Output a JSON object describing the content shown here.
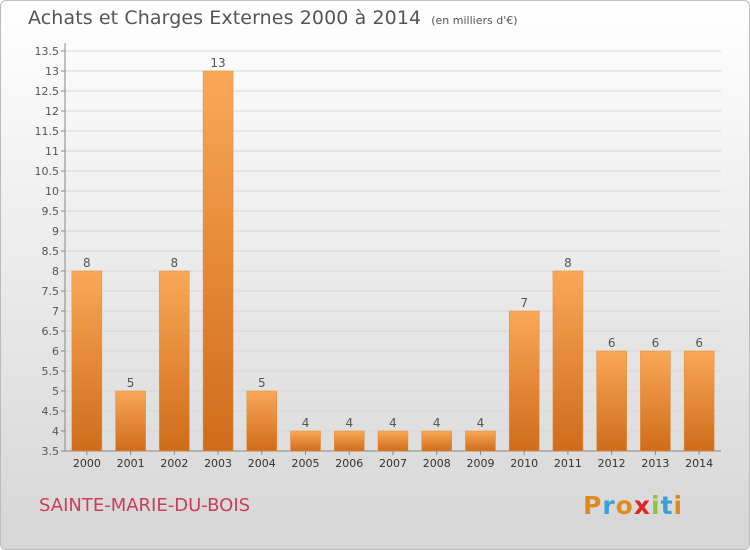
{
  "header": {
    "title": "Achats et Charges Externes 2000 à 2014",
    "unit": "(en milliers d'€)"
  },
  "footer": {
    "commune": "SAINTE-MARIE-DU-BOIS",
    "logo": "Proxiti",
    "logo_colors": [
      "#e08a1e",
      "#3aa0d8",
      "#e08a1e",
      "#e0252a",
      "#8cc63f",
      "#3aa0d8",
      "#e08a1e"
    ]
  },
  "chart_data": {
    "type": "bar",
    "categories": [
      "2000",
      "2001",
      "2002",
      "2003",
      "2004",
      "2005",
      "2006",
      "2007",
      "2008",
      "2009",
      "2010",
      "2011",
      "2012",
      "2013",
      "2014"
    ],
    "values": [
      8,
      5,
      8,
      13,
      5,
      4,
      4,
      4,
      4,
      4,
      7,
      8,
      6,
      6,
      6
    ],
    "data_labels": [
      "8",
      "5",
      "8",
      "13",
      "5",
      "4",
      "4",
      "4",
      "4",
      "4",
      "7",
      "8",
      "6",
      "6",
      "6"
    ],
    "yticks": [
      "3.5",
      "4",
      "4.5",
      "5",
      "5.5",
      "6",
      "6.5",
      "7",
      "7.5",
      "8",
      "8.5",
      "9",
      "9.5",
      "10",
      "10.5",
      "11",
      "11.5",
      "12",
      "12.5",
      "13",
      "13.5"
    ],
    "ylim": [
      3.5,
      13.5
    ],
    "grid": true,
    "colors": {
      "bar_light": "#f9a857",
      "bar_dark": "#cf6c1a",
      "text": "#555555",
      "grid": "#d7d7d7"
    }
  }
}
